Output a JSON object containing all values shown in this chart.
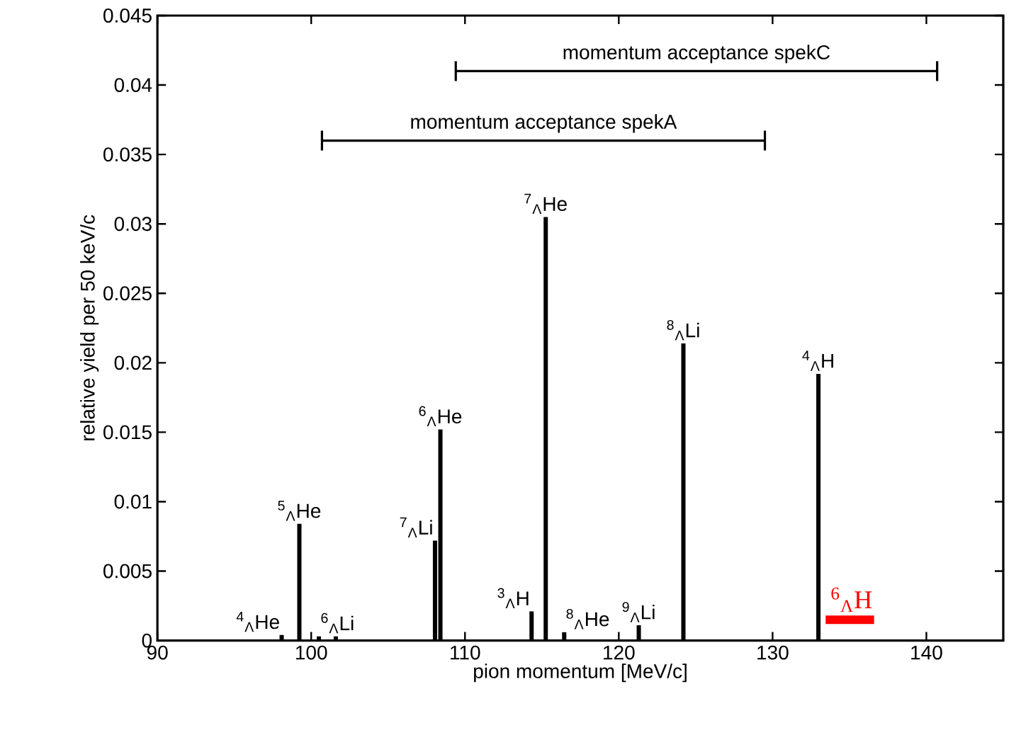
{
  "chart_data": {
    "type": "bar",
    "xlabel": "pion momentum [MeV/c]",
    "ylabel": "relative yield per 50 keV/c",
    "xlim": [
      90,
      145
    ],
    "xticks": [
      90,
      100,
      110,
      120,
      130,
      140
    ],
    "ylim": [
      0,
      0.045
    ],
    "yticks": [
      0,
      0.005,
      0.01,
      0.015,
      0.02,
      0.025,
      0.03,
      0.035,
      0.04,
      0.045
    ],
    "grid": false,
    "series": [
      {
        "color": "#000000",
        "x": [
          98.08,
          99.23,
          100.5,
          101.6,
          108.05,
          108.4,
          114.33,
          115.25,
          116.45,
          121.3,
          124.2,
          132.98
        ],
        "values": [
          0.0004,
          0.0084,
          0.0003,
          0.0003,
          0.0072,
          0.0152,
          0.0021,
          0.0305,
          0.0006,
          0.0011,
          0.0214,
          0.0192
        ]
      },
      {
        "type": "line",
        "name": "momentum acceptance spekC",
        "color": "#000000",
        "x": [
          109.4,
          140.7
        ],
        "values": [
          0.041,
          0.041
        ]
      },
      {
        "type": "line",
        "name": "momentum acceptance spekA",
        "color": "#000000",
        "x": [
          100.7,
          129.5
        ],
        "values": [
          0.036,
          0.036
        ]
      },
      {
        "type": "line",
        "name": "$^{6}$$_{Λ}$H",
        "color": "#ff0000",
        "x": [
          133.45,
          136.6
        ],
        "values": [
          0.0015,
          0.0015
        ]
      }
    ],
    "annotations": [
      {
        "text": "$^{4}$$_{Λ}$He",
        "x": 98.08,
        "y": 0.0004
      },
      {
        "text": "$^{5}$$_{Λ}$He",
        "x": 99.23,
        "y": 0.0084
      },
      {
        "text": "$^{6}$$_{Λ}$Li",
        "x": 100.5,
        "y": 0.0003
      },
      {
        "text": "$^{7}$$_{Λ}$Li",
        "x": 108.05,
        "y": 0.0072
      },
      {
        "text": "$^{6}$$_{Λ}$He",
        "x": 108.4,
        "y": 0.0152
      },
      {
        "text": "$^{3}$$_{Λ}$H",
        "x": 114.33,
        "y": 0.0021
      },
      {
        "text": "$^{7}$$_{Λ}$He",
        "x": 115.25,
        "y": 0.0305
      },
      {
        "text": "$^{8}$$_{Λ}$He",
        "x": 116.45,
        "y": 0.0006
      },
      {
        "text": "$^{9}$$_{Λ}$Li",
        "x": 121.3,
        "y": 0.0011
      },
      {
        "text": "$^{8}$$_{Λ}$Li",
        "x": 124.2,
        "y": 0.0214
      },
      {
        "text": "$^{4}$$_{Λ}$H",
        "x": 132.98,
        "y": 0.0192
      }
    ]
  }
}
